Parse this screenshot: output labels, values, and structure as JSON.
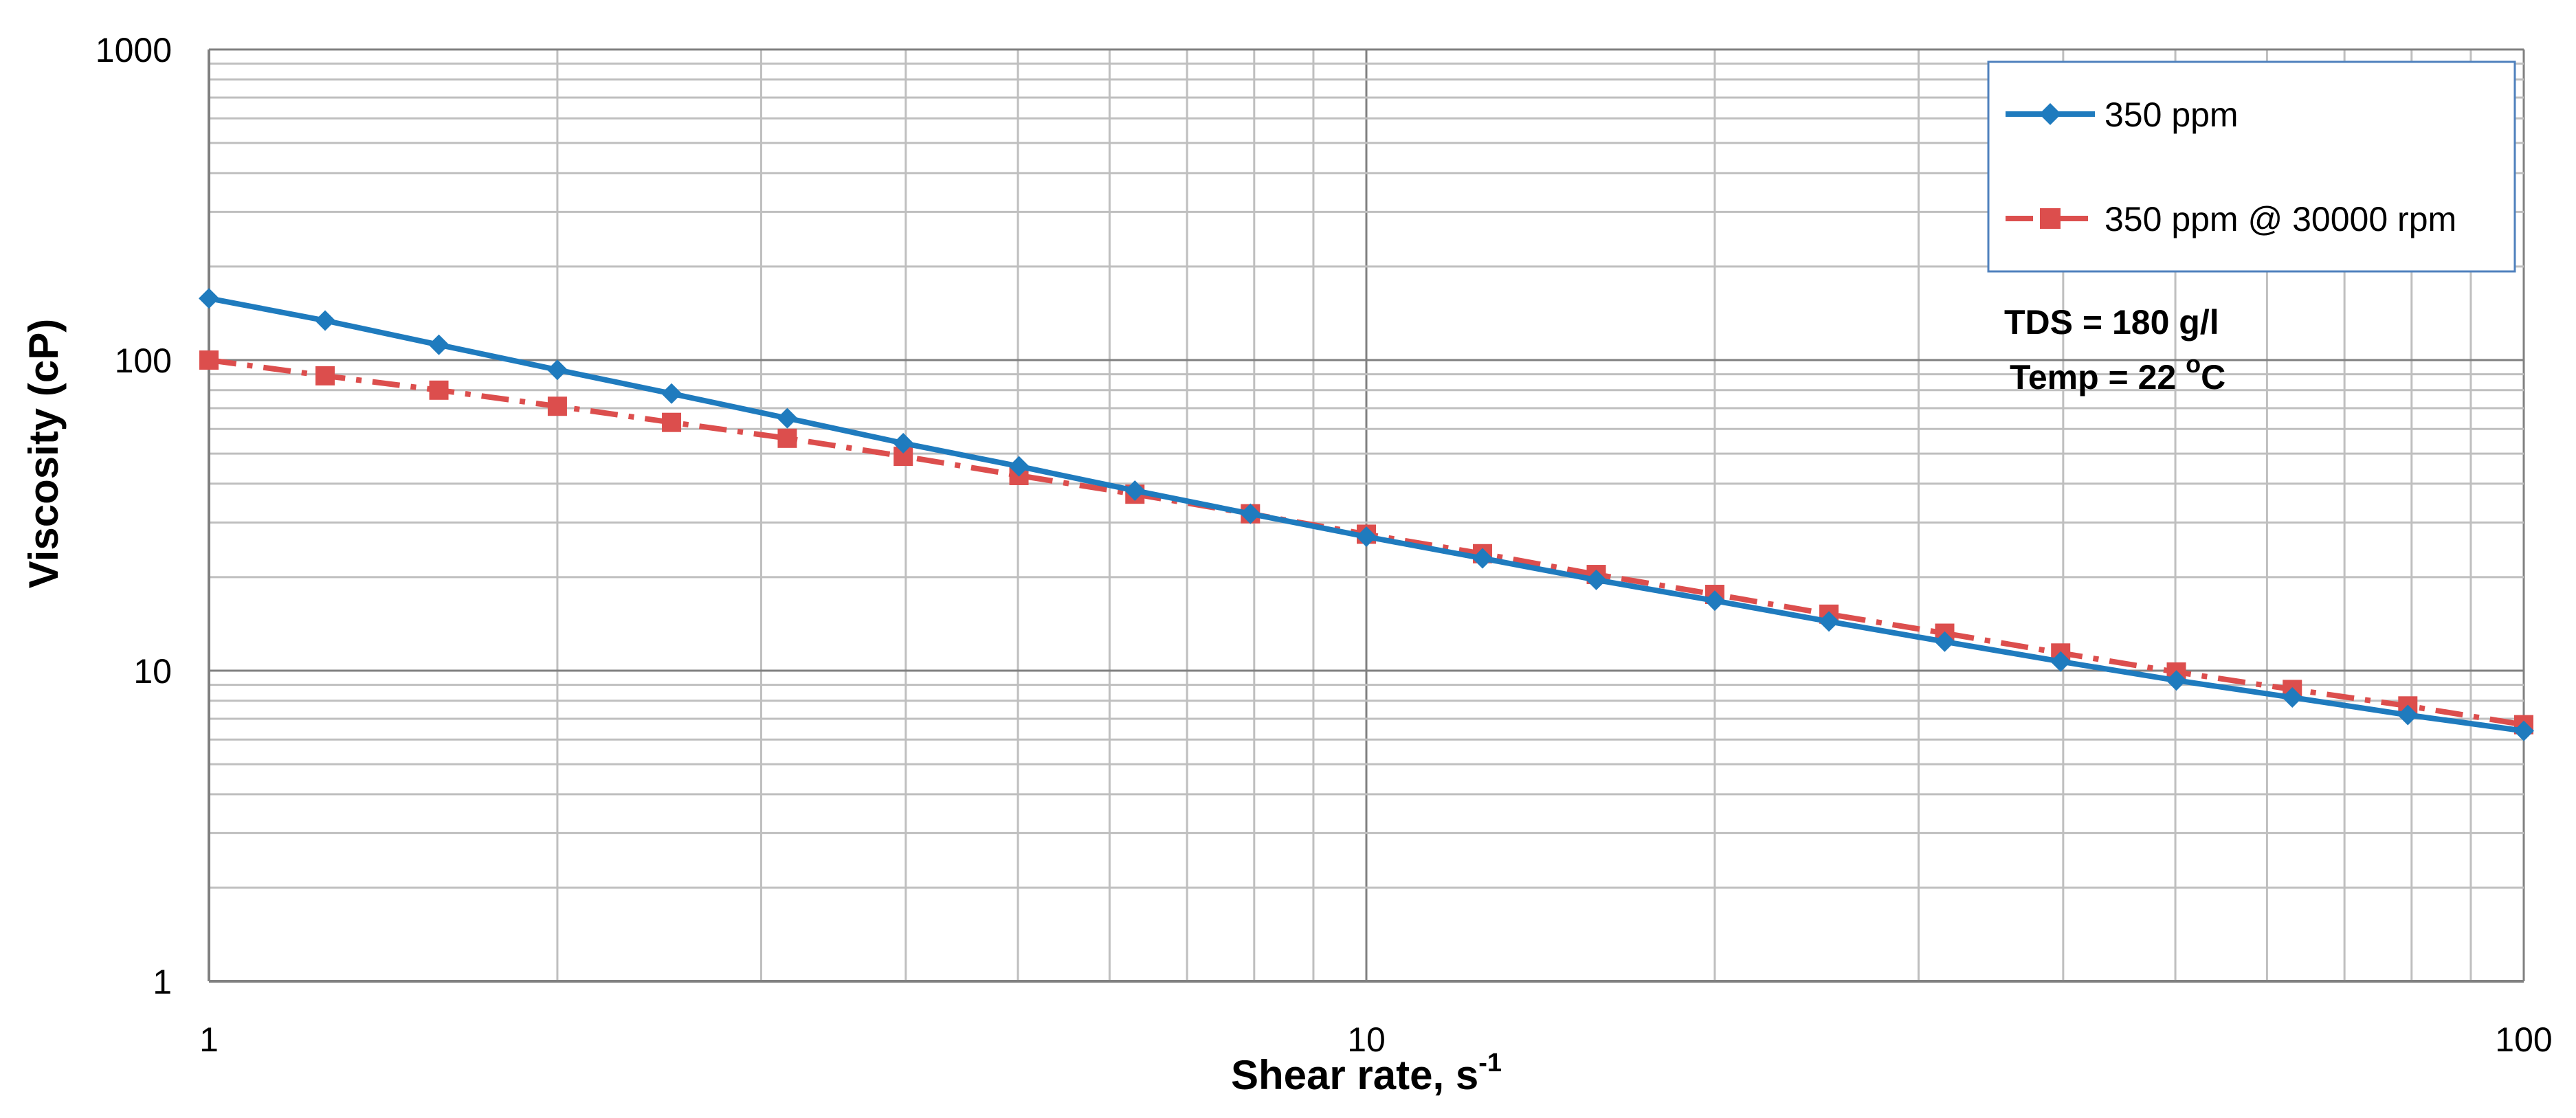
{
  "colors": {
    "series_blue": "#1F7BBE",
    "series_red": "#DC4E4D",
    "grid": "#BFBFBF",
    "grid_major": "#808080",
    "legend_border": "#4F81BD"
  },
  "chart_data": {
    "type": "line",
    "xscale": "log",
    "yscale": "log",
    "xlim": [
      1,
      100
    ],
    "ylim": [
      1,
      1000
    ],
    "grid": true,
    "legend_position": "top-right",
    "xlabel": "Shear rate, s",
    "xlabel_sup": "-1",
    "ylabel": "Viscosity (cP)",
    "x_tick_labels": [
      "1",
      "10",
      "100"
    ],
    "y_tick_labels": [
      "1",
      "10",
      "100",
      "1000"
    ],
    "annotations": [
      {
        "text": "TDS = 180 g/l"
      },
      {
        "text": "Temp = 22 ",
        "sup": "o",
        "suffix": "C"
      }
    ],
    "series": [
      {
        "name": "350 ppm",
        "color": "#1F7BBE",
        "marker": "diamond",
        "line": "solid",
        "x": [
          1,
          1.26,
          1.58,
          2,
          2.51,
          3.16,
          3.98,
          5.01,
          6.31,
          7.94,
          10,
          12.6,
          15.8,
          20,
          25.1,
          31.6,
          39.8,
          50.1,
          63.1,
          79.4,
          100
        ],
        "y": [
          158,
          134,
          112,
          93,
          78,
          65,
          54,
          45.5,
          38,
          32,
          27,
          23,
          19.6,
          16.8,
          14.4,
          12.4,
          10.7,
          9.3,
          8.2,
          7.2,
          6.4
        ]
      },
      {
        "name": "350 ppm @ 30000 rpm",
        "color": "#DC4E4D",
        "marker": "square",
        "line": "dash-dot",
        "x": [
          1,
          1.26,
          1.58,
          2,
          2.51,
          3.16,
          3.98,
          5.01,
          6.31,
          7.94,
          10,
          12.6,
          15.8,
          20,
          25.1,
          31.6,
          39.8,
          50.1,
          63.1,
          79.4,
          100
        ],
        "y": [
          100,
          89,
          80,
          71,
          63,
          56,
          49,
          42.5,
          37,
          32,
          27.5,
          23.8,
          20.4,
          17.6,
          15.2,
          13.2,
          11.4,
          9.9,
          8.7,
          7.7,
          6.7
        ]
      }
    ]
  }
}
